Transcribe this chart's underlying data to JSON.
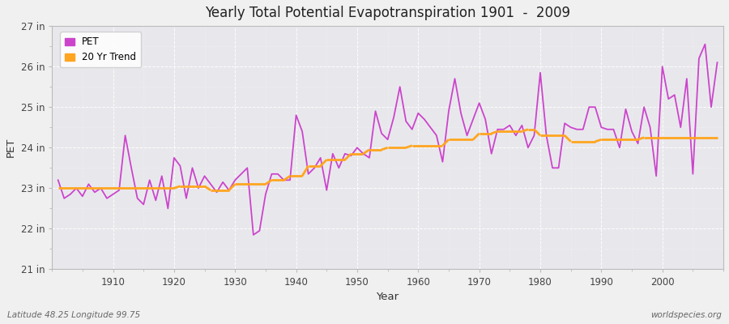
{
  "title": "Yearly Total Potential Evapotranspiration 1901  -  2009",
  "xlabel": "Year",
  "ylabel": "PET",
  "subtitle_left": "Latitude 48.25 Longitude 99.75",
  "subtitle_right": "worldspecies.org",
  "pet_color": "#CC44CC",
  "trend_color": "#FFA520",
  "fig_bg_color": "#F0F0F0",
  "plot_bg_color": "#E8E8EC",
  "grid_color": "#FFFFFF",
  "ylim": [
    21,
    27
  ],
  "xlim": [
    1900,
    2010
  ],
  "ytick_labels": [
    "21 in",
    "22 in",
    "23 in",
    "24 in",
    "25 in",
    "26 in",
    "27 in"
  ],
  "ytick_values": [
    21,
    22,
    23,
    24,
    25,
    26,
    27
  ],
  "xtick_values": [
    1910,
    1920,
    1930,
    1940,
    1950,
    1960,
    1970,
    1980,
    1990,
    2000
  ],
  "years": [
    1901,
    1902,
    1903,
    1904,
    1905,
    1906,
    1907,
    1908,
    1909,
    1910,
    1911,
    1912,
    1913,
    1914,
    1915,
    1916,
    1917,
    1918,
    1919,
    1920,
    1921,
    1922,
    1923,
    1924,
    1925,
    1926,
    1927,
    1928,
    1929,
    1930,
    1931,
    1932,
    1933,
    1934,
    1935,
    1936,
    1937,
    1938,
    1939,
    1940,
    1941,
    1942,
    1943,
    1944,
    1945,
    1946,
    1947,
    1948,
    1949,
    1950,
    1951,
    1952,
    1953,
    1954,
    1955,
    1956,
    1957,
    1958,
    1959,
    1960,
    1961,
    1962,
    1963,
    1964,
    1965,
    1966,
    1967,
    1968,
    1969,
    1970,
    1971,
    1972,
    1973,
    1974,
    1975,
    1976,
    1977,
    1978,
    1979,
    1980,
    1981,
    1982,
    1983,
    1984,
    1985,
    1986,
    1987,
    1988,
    1989,
    1990,
    1991,
    1992,
    1993,
    1994,
    1995,
    1996,
    1997,
    1998,
    1999,
    2000,
    2001,
    2002,
    2003,
    2004,
    2005,
    2006,
    2007,
    2008,
    2009
  ],
  "pet_values": [
    23.2,
    22.75,
    22.85,
    23.0,
    22.8,
    23.1,
    22.9,
    23.0,
    22.75,
    22.85,
    22.95,
    24.3,
    23.5,
    22.75,
    22.6,
    23.2,
    22.7,
    23.3,
    22.5,
    23.75,
    23.55,
    22.75,
    23.5,
    23.0,
    23.3,
    23.1,
    22.9,
    23.15,
    22.95,
    23.2,
    23.35,
    23.5,
    21.85,
    21.95,
    22.85,
    23.35,
    23.35,
    23.2,
    23.2,
    24.8,
    24.4,
    23.35,
    23.5,
    23.75,
    22.95,
    23.85,
    23.5,
    23.85,
    23.8,
    24.0,
    23.85,
    23.75,
    24.9,
    24.35,
    24.2,
    24.75,
    25.5,
    24.65,
    24.45,
    24.85,
    24.7,
    24.5,
    24.3,
    23.65,
    24.9,
    25.7,
    24.85,
    24.3,
    24.7,
    25.1,
    24.7,
    23.85,
    24.45,
    24.45,
    24.55,
    24.3,
    24.55,
    24.0,
    24.3,
    25.85,
    24.3,
    23.5,
    23.5,
    24.6,
    24.5,
    24.45,
    24.45,
    25.0,
    25.0,
    24.5,
    24.45,
    24.45,
    24.0,
    24.95,
    24.4,
    24.1,
    25.0,
    24.5,
    23.3,
    26.0,
    25.2,
    25.3,
    24.5,
    25.7,
    23.35,
    26.2,
    26.55,
    25.0,
    26.1
  ],
  "trend_segments": [
    {
      "x": [
        1901,
        1920
      ],
      "y": [
        23.0,
        23.0
      ]
    },
    {
      "x": [
        1920,
        1921
      ],
      "y": [
        23.0,
        23.05
      ]
    },
    {
      "x": [
        1921,
        1925
      ],
      "y": [
        23.05,
        23.05
      ]
    },
    {
      "x": [
        1925,
        1926
      ],
      "y": [
        23.05,
        22.95
      ]
    },
    {
      "x": [
        1926,
        1929
      ],
      "y": [
        22.95,
        22.95
      ]
    },
    {
      "x": [
        1929,
        1930
      ],
      "y": [
        22.95,
        23.1
      ]
    },
    {
      "x": [
        1930,
        1935
      ],
      "y": [
        23.1,
        23.1
      ]
    },
    {
      "x": [
        1935,
        1936
      ],
      "y": [
        23.1,
        23.2
      ]
    },
    {
      "x": [
        1936,
        1938
      ],
      "y": [
        23.2,
        23.2
      ]
    },
    {
      "x": [
        1938,
        1939
      ],
      "y": [
        23.2,
        23.3
      ]
    },
    {
      "x": [
        1939,
        1941
      ],
      "y": [
        23.3,
        23.3
      ]
    },
    {
      "x": [
        1941,
        1942
      ],
      "y": [
        23.3,
        23.55
      ]
    },
    {
      "x": [
        1942,
        1944
      ],
      "y": [
        23.55,
        23.55
      ]
    },
    {
      "x": [
        1944,
        1945
      ],
      "y": [
        23.55,
        23.7
      ]
    },
    {
      "x": [
        1945,
        1948
      ],
      "y": [
        23.7,
        23.7
      ]
    },
    {
      "x": [
        1948,
        1949
      ],
      "y": [
        23.7,
        23.85
      ]
    },
    {
      "x": [
        1949,
        1951
      ],
      "y": [
        23.85,
        23.85
      ]
    },
    {
      "x": [
        1951,
        1952
      ],
      "y": [
        23.85,
        23.95
      ]
    },
    {
      "x": [
        1952,
        1954
      ],
      "y": [
        23.95,
        23.95
      ]
    },
    {
      "x": [
        1954,
        1955
      ],
      "y": [
        23.95,
        24.0
      ]
    },
    {
      "x": [
        1955,
        1958
      ],
      "y": [
        24.0,
        24.0
      ]
    },
    {
      "x": [
        1958,
        1959
      ],
      "y": [
        24.0,
        24.05
      ]
    },
    {
      "x": [
        1959,
        1964
      ],
      "y": [
        24.05,
        24.05
      ]
    },
    {
      "x": [
        1964,
        1965
      ],
      "y": [
        24.05,
        24.2
      ]
    },
    {
      "x": [
        1965,
        1969
      ],
      "y": [
        24.2,
        24.2
      ]
    },
    {
      "x": [
        1969,
        1970
      ],
      "y": [
        24.2,
        24.35
      ]
    },
    {
      "x": [
        1970,
        1972
      ],
      "y": [
        24.35,
        24.35
      ]
    },
    {
      "x": [
        1972,
        1973
      ],
      "y": [
        24.35,
        24.4
      ]
    },
    {
      "x": [
        1973,
        1977
      ],
      "y": [
        24.4,
        24.4
      ]
    },
    {
      "x": [
        1977,
        1978
      ],
      "y": [
        24.4,
        24.45
      ]
    },
    {
      "x": [
        1978,
        1979
      ],
      "y": [
        24.45,
        24.45
      ]
    },
    {
      "x": [
        1979,
        1980
      ],
      "y": [
        24.45,
        24.3
      ]
    },
    {
      "x": [
        1980,
        1984
      ],
      "y": [
        24.3,
        24.3
      ]
    },
    {
      "x": [
        1984,
        1985
      ],
      "y": [
        24.3,
        24.15
      ]
    },
    {
      "x": [
        1985,
        1989
      ],
      "y": [
        24.15,
        24.15
      ]
    },
    {
      "x": [
        1989,
        1990
      ],
      "y": [
        24.15,
        24.2
      ]
    },
    {
      "x": [
        1990,
        1996
      ],
      "y": [
        24.2,
        24.2
      ]
    },
    {
      "x": [
        1996,
        1997
      ],
      "y": [
        24.2,
        24.25
      ]
    },
    {
      "x": [
        1997,
        2009
      ],
      "y": [
        24.25,
        24.25
      ]
    }
  ]
}
